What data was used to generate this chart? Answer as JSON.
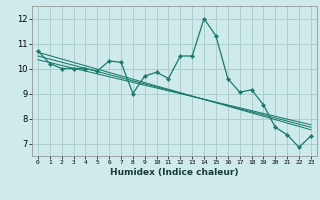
{
  "xlabel": "Humidex (Indice chaleur)",
  "bg_color": "#ceeaea",
  "grid_color": "#aecece",
  "line_color": "#1a7a6e",
  "x_ticks": [
    0,
    1,
    2,
    3,
    4,
    5,
    6,
    7,
    8,
    9,
    10,
    11,
    12,
    13,
    14,
    15,
    16,
    17,
    18,
    19,
    20,
    21,
    22,
    23
  ],
  "y_ticks": [
    7,
    8,
    9,
    10,
    11,
    12
  ],
  "ylim": [
    6.5,
    12.5
  ],
  "xlim": [
    -0.5,
    23.5
  ],
  "series": [
    [
      0,
      10.7
    ],
    [
      1,
      10.2
    ],
    [
      2,
      10.0
    ],
    [
      3,
      10.0
    ],
    [
      4,
      10.0
    ],
    [
      5,
      9.9
    ],
    [
      6,
      10.3
    ],
    [
      7,
      10.25
    ],
    [
      8,
      9.0
    ],
    [
      9,
      9.7
    ],
    [
      10,
      9.85
    ],
    [
      11,
      9.6
    ],
    [
      12,
      10.5
    ],
    [
      13,
      10.5
    ],
    [
      14,
      12.0
    ],
    [
      15,
      11.3
    ],
    [
      16,
      9.6
    ],
    [
      17,
      9.05
    ],
    [
      18,
      9.15
    ],
    [
      19,
      8.55
    ],
    [
      20,
      7.65
    ],
    [
      21,
      7.35
    ],
    [
      22,
      6.85
    ],
    [
      23,
      7.3
    ]
  ],
  "trend_lines": [
    [
      [
        0,
        10.65
      ],
      [
        23,
        7.55
      ]
    ],
    [
      [
        0,
        10.5
      ],
      [
        23,
        7.65
      ]
    ],
    [
      [
        0,
        10.35
      ],
      [
        23,
        7.75
      ]
    ]
  ]
}
